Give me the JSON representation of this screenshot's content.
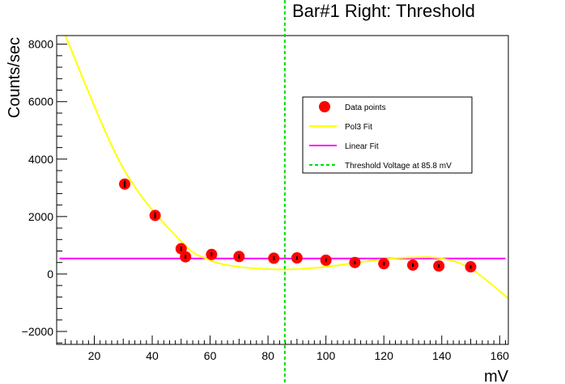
{
  "chart_data": {
    "type": "scatter",
    "title": "Bar#1 Right: Threshold",
    "xlabel": "mV",
    "ylabel": "Counts/sec",
    "xlim": [
      7,
      163
    ],
    "ylim": [
      -2450,
      8300
    ],
    "x_ticks": [
      20,
      40,
      60,
      80,
      100,
      120,
      140,
      160
    ],
    "y_ticks": [
      -2000,
      0,
      2000,
      4000,
      6000,
      8000
    ],
    "y_tick_labels": [
      "−2000",
      "0",
      "2000",
      "4000",
      "6000",
      "8000"
    ],
    "grid": false,
    "legend_position": "top-right",
    "colors": {
      "points": "#ff0000",
      "error_bars": "#000000",
      "pol3": "#ffff00",
      "linear": "#ff00ff",
      "threshold": "#00dd00"
    },
    "series": [
      {
        "name": "Data points",
        "kind": "points",
        "x": [
          30.5,
          41,
          50,
          51.5,
          60.5,
          70,
          82,
          90,
          100,
          110,
          120,
          130,
          139,
          150
        ],
        "y": [
          3130,
          2040,
          880,
          600,
          680,
          610,
          550,
          560,
          480,
          400,
          360,
          310,
          280,
          250
        ],
        "y_err": [
          120,
          110,
          80,
          70,
          70,
          70,
          70,
          60,
          60,
          60,
          60,
          60,
          60,
          60
        ]
      },
      {
        "name": "Pol3 Fit",
        "kind": "curve",
        "x": [
          10,
          30,
          50,
          60,
          70,
          80,
          85,
          90,
          100,
          110,
          120,
          130,
          140,
          150,
          163
        ],
        "y": [
          8300,
          3680,
          1130,
          480,
          250,
          170,
          160,
          170,
          250,
          390,
          510,
          580,
          540,
          190,
          -850
        ]
      },
      {
        "name": "Linear Fit",
        "kind": "line",
        "x": [
          8,
          162
        ],
        "y": [
          540,
          540
        ]
      },
      {
        "name": "Threshold Voltage at 85.8 mV",
        "kind": "vline",
        "x": 85.8
      }
    ]
  }
}
